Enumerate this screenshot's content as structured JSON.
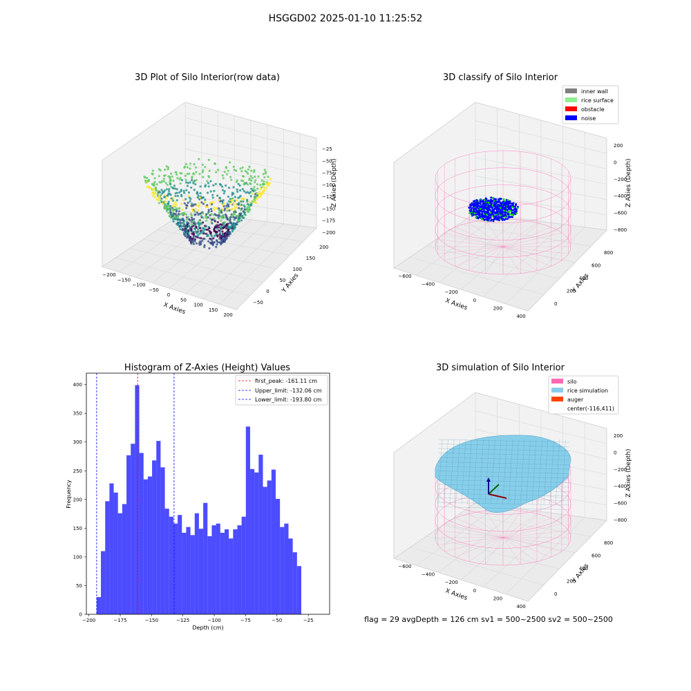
{
  "figure": {
    "suptitle": "HSGGD02 2025-01-10 11:25:52",
    "footer": "flag = 29  avgDepth = 126 cm  sv1 = 500~2500  sv2 = 500~2500"
  },
  "colors": {
    "inner_wall": "#808080",
    "rice_surface": "#90ee90",
    "obstacle": "#ff0000",
    "noise": "#0000ff",
    "silo": "#ff69b4",
    "rice_simulation": "#87ceeb",
    "auger": "#ff4500",
    "histogram_bars": "#0000ff",
    "first_peak_line": "#ff0000",
    "limit_lines": "#0000ff"
  },
  "chart_data": [
    {
      "type": "scatter3d",
      "title": "3D Plot of Silo Interior(row data)",
      "xlabel": "X Axies",
      "ylabel": "Y Axies",
      "zlabel": "Z Axies (Depth)",
      "x_ticks": [
        "−200",
        "−150",
        "−100",
        "−50",
        "0",
        "50",
        "100",
        "150",
        "200"
      ],
      "y_ticks": [
        "−50",
        "0",
        "50",
        "100",
        "150",
        "200"
      ],
      "z_ticks": [
        "−25",
        "−50",
        "−75",
        "−100",
        "−125",
        "−150",
        "−175",
        "−200"
      ],
      "colormap": "viridis"
    },
    {
      "type": "scatter3d",
      "title": "3D classify of Silo Interior",
      "xlabel": "X Axies",
      "ylabel": "Y Axies",
      "zlabel": "Z Axies (Depth)",
      "x_ticks": [
        "−600",
        "−400",
        "−200",
        "0",
        "200",
        "400"
      ],
      "y_ticks": [
        "0",
        "200",
        "400",
        "600",
        "800"
      ],
      "z_ticks": [
        "200",
        "0",
        "−200",
        "−400",
        "−600",
        "−800"
      ],
      "legend": [
        "inner wall",
        "rice surface",
        "obstacle",
        "noise"
      ],
      "legend_loc": "top-right"
    },
    {
      "type": "bar",
      "title": "Histogram of Z-Axies (Height) Values",
      "xlabel": "Depth (cm)",
      "ylabel": "Frequency",
      "xlim": [
        -202,
        -8
      ],
      "ylim": [
        0,
        420
      ],
      "x_ticks": [
        -200,
        -175,
        -150,
        -125,
        -100,
        -75,
        -50,
        -25
      ],
      "x_tick_labels": [
        "−200",
        "−175",
        "−150",
        "−125",
        "−100",
        "−75",
        "−50",
        "−25"
      ],
      "y_ticks": [
        0,
        50,
        100,
        150,
        200,
        250,
        300,
        350,
        400
      ],
      "y_tick_labels": [
        "0",
        "50",
        "100",
        "150",
        "200",
        "250",
        "300",
        "350",
        "400"
      ],
      "bin_start": -193.8,
      "bin_width": 3.4,
      "values": [
        30,
        110,
        197,
        228,
        212,
        176,
        192,
        277,
        297,
        399,
        281,
        235,
        240,
        268,
        302,
        256,
        184,
        170,
        158,
        173,
        142,
        152,
        138,
        176,
        149,
        194,
        136,
        155,
        158,
        142,
        148,
        132,
        148,
        155,
        170,
        327,
        253,
        247,
        278,
        222,
        233,
        252,
        201,
        152,
        158,
        132,
        108,
        84
      ],
      "vlines": [
        {
          "x": -161.11,
          "kind": "first_peak",
          "label": "first_peak: -161.11 cm"
        },
        {
          "x": -132.06,
          "kind": "limit",
          "label": "Upper_limit: -132.06 cm"
        },
        {
          "x": -193.8,
          "kind": "limit",
          "label": "Lower_limit: -193.80 cm"
        }
      ],
      "legend_loc": "top-right"
    },
    {
      "type": "surface3d",
      "title": "3D simulation of Silo Interior",
      "xlabel": "X Axies",
      "ylabel": "Y Axies",
      "zlabel": "Z Axies (Depth)",
      "x_ticks": [
        "−600",
        "−400",
        "−200",
        "0",
        "200",
        "400"
      ],
      "y_ticks": [
        "0",
        "200",
        "400",
        "600",
        "800"
      ],
      "z_ticks": [
        "200",
        "0",
        "−200",
        "−400",
        "−600",
        "−800"
      ],
      "legend": [
        "silo",
        "rice simulation",
        "auger",
        "center(-116,411)"
      ],
      "legend_loc": "top-right"
    }
  ]
}
